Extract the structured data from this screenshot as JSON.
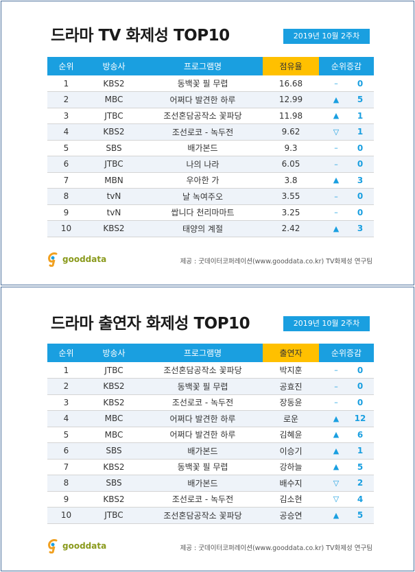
{
  "colors": {
    "header_blue": "#1a9fe0",
    "header_yellow": "#ffc000",
    "accent": "#1a9fe0",
    "logo_green": "#8a9a1c"
  },
  "panels": [
    {
      "title": "드라마 TV 화제성 TOP10",
      "date": "2019년 10월 2주차",
      "headers": [
        "순위",
        "방송사",
        "프로그램명",
        "점유율",
        "순위증감"
      ],
      "rows": [
        {
          "rank": "1",
          "broadcaster": "KBS2",
          "program": "동백꽃 필 무렵",
          "value": "16.68",
          "change_icon": "–",
          "change": "0"
        },
        {
          "rank": "2",
          "broadcaster": "MBC",
          "program": "어쩌다 발견한 하루",
          "value": "12.99",
          "change_icon": "▲",
          "change": "5"
        },
        {
          "rank": "3",
          "broadcaster": "JTBC",
          "program": "조선혼담공작소 꽃파당",
          "value": "11.98",
          "change_icon": "▲",
          "change": "1"
        },
        {
          "rank": "4",
          "broadcaster": "KBS2",
          "program": "조선로코 - 녹두전",
          "value": "9.62",
          "change_icon": "▽",
          "change": "1"
        },
        {
          "rank": "5",
          "broadcaster": "SBS",
          "program": "배가본드",
          "value": "9.3",
          "change_icon": "–",
          "change": "0"
        },
        {
          "rank": "6",
          "broadcaster": "JTBC",
          "program": "나의 나라",
          "value": "6.05",
          "change_icon": "–",
          "change": "0"
        },
        {
          "rank": "7",
          "broadcaster": "MBN",
          "program": "우아한 가",
          "value": "3.8",
          "change_icon": "▲",
          "change": "3"
        },
        {
          "rank": "8",
          "broadcaster": "tvN",
          "program": "날 녹여주오",
          "value": "3.55",
          "change_icon": "–",
          "change": "0"
        },
        {
          "rank": "9",
          "broadcaster": "tvN",
          "program": "쌉니다 천리마마트",
          "value": "3.25",
          "change_icon": "–",
          "change": "0"
        },
        {
          "rank": "10",
          "broadcaster": "KBS2",
          "program": "태양의 계절",
          "value": "2.42",
          "change_icon": "▲",
          "change": "3"
        }
      ],
      "logo_text": "gooddata",
      "source": "제공 : 굿데이터코퍼레이션(www.gooddata.co.kr) TV화제성 연구팀"
    },
    {
      "title": "드라마 출연자 화제성 TOP10",
      "date": "2019년 10월 2주차",
      "headers": [
        "순위",
        "방송사",
        "프로그램명",
        "출연자",
        "순위증감"
      ],
      "rows": [
        {
          "rank": "1",
          "broadcaster": "JTBC",
          "program": "조선혼담공작소 꽃파당",
          "value": "박지훈",
          "change_icon": "–",
          "change": "0"
        },
        {
          "rank": "2",
          "broadcaster": "KBS2",
          "program": "동백꽃 필 무렵",
          "value": "공효진",
          "change_icon": "–",
          "change": "0"
        },
        {
          "rank": "3",
          "broadcaster": "KBS2",
          "program": "조선로코 - 녹두전",
          "value": "장동윤",
          "change_icon": "–",
          "change": "0"
        },
        {
          "rank": "4",
          "broadcaster": "MBC",
          "program": "어쩌다 발견한 하루",
          "value": "로운",
          "change_icon": "▲",
          "change": "12"
        },
        {
          "rank": "5",
          "broadcaster": "MBC",
          "program": "어쩌다 발견한 하루",
          "value": "김혜윤",
          "change_icon": "▲",
          "change": "6"
        },
        {
          "rank": "6",
          "broadcaster": "SBS",
          "program": "배가본드",
          "value": "이승기",
          "change_icon": "▲",
          "change": "1"
        },
        {
          "rank": "7",
          "broadcaster": "KBS2",
          "program": "동백꽃 필 무렵",
          "value": "강하늘",
          "change_icon": "▲",
          "change": "5"
        },
        {
          "rank": "8",
          "broadcaster": "SBS",
          "program": "배가본드",
          "value": "배수지",
          "change_icon": "▽",
          "change": "2"
        },
        {
          "rank": "9",
          "broadcaster": "KBS2",
          "program": "조선로코 - 녹두전",
          "value": "김소현",
          "change_icon": "▽",
          "change": "4"
        },
        {
          "rank": "10",
          "broadcaster": "JTBC",
          "program": "조선혼담공작소 꽃파당",
          "value": "공승연",
          "change_icon": "▲",
          "change": "5"
        }
      ],
      "logo_text": "gooddata",
      "source": "제공 : 굿데이터코퍼레이션(www.gooddata.co.kr) TV화제성 연구팀"
    }
  ]
}
